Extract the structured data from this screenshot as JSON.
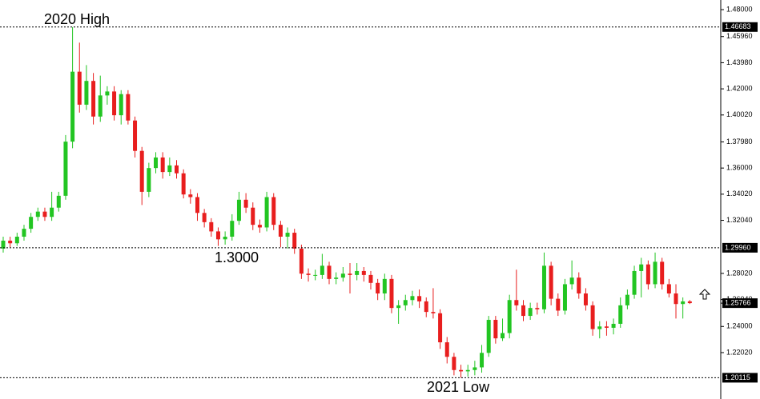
{
  "chart_data": {
    "type": "candlestick",
    "ylim": [
      1.1905,
      1.4873
    ],
    "yticks": [
      {
        "value": 1.48,
        "label": "1.48000"
      },
      {
        "value": 1.4596,
        "label": "1.45960"
      },
      {
        "value": 1.4398,
        "label": "1.43980"
      },
      {
        "value": 1.42,
        "label": "1.42000"
      },
      {
        "value": 1.4002,
        "label": "1.40020"
      },
      {
        "value": 1.3798,
        "label": "1.37980"
      },
      {
        "value": 1.36,
        "label": "1.36000"
      },
      {
        "value": 1.3402,
        "label": "1.34020"
      },
      {
        "value": 1.3204,
        "label": "1.32040"
      },
      {
        "value": 1.2802,
        "label": "1.28020"
      },
      {
        "value": 1.2604,
        "label": "1.26040"
      },
      {
        "value": 1.24,
        "label": "1.24000"
      },
      {
        "value": 1.2202,
        "label": "1.22020"
      }
    ],
    "levels": [
      1.46683,
      {
        "value": 1.2996,
        "label": "1.29960"
      },
      {
        "value": 1.20115,
        "label": "1.20115"
      }
    ],
    "last_price": 1.25766,
    "annotations": [
      "2020 High",
      "1.3000",
      "2021 Low"
    ],
    "up_color": "#22c522",
    "down_color": "#e81e1e",
    "open": [
      1.299,
      1.305,
      1.303,
      1.308,
      1.314,
      1.323,
      1.327,
      1.323,
      1.33,
      1.339,
      1.38,
      1.433,
      1.408,
      1.426,
      1.399,
      1.415,
      1.418,
      1.4,
      1.416,
      1.396,
      1.373,
      1.342,
      1.36,
      1.368,
      1.357,
      1.362,
      1.356,
      1.34,
      1.338,
      1.326,
      1.319,
      1.312,
      1.306,
      1.308,
      1.32,
      1.336,
      1.33,
      1.317,
      1.315,
      1.338,
      1.317,
      1.308,
      1.311,
      1.299,
      1.28,
      1.279,
      1.279,
      1.286,
      1.276,
      1.277,
      1.28,
      1.279,
      1.282,
      1.279,
      1.273,
      1.265,
      1.276,
      1.254,
      1.256,
      1.26,
      1.263,
      1.259,
      1.251,
      1.25,
      1.228,
      1.217,
      1.207,
      1.206,
      1.207,
      1.209,
      1.22,
      1.245,
      1.231,
      1.235,
      1.26,
      1.256,
      1.248,
      1.254,
      1.253,
      1.286,
      1.261,
      1.252,
      1.272,
      1.277,
      1.265,
      1.256,
      1.238,
      1.24,
      1.239,
      1.242,
      1.256,
      1.264,
      1.282,
      1.287,
      1.272,
      1.289,
      1.272,
      1.265,
      1.257,
      1.259
    ],
    "high": [
      1.308,
      1.308,
      1.311,
      1.317,
      1.326,
      1.33,
      1.33,
      1.342,
      1.342,
      1.385,
      1.4668,
      1.455,
      1.438,
      1.432,
      1.43,
      1.422,
      1.422,
      1.419,
      1.419,
      1.399,
      1.376,
      1.364,
      1.372,
      1.372,
      1.368,
      1.366,
      1.359,
      1.344,
      1.341,
      1.329,
      1.322,
      1.315,
      1.312,
      1.325,
      1.342,
      1.341,
      1.334,
      1.321,
      1.342,
      1.341,
      1.32,
      1.315,
      1.314,
      1.302,
      1.284,
      1.283,
      1.295,
      1.289,
      1.281,
      1.285,
      1.288,
      1.288,
      1.285,
      1.282,
      1.276,
      1.28,
      1.279,
      1.26,
      1.264,
      1.267,
      1.268,
      1.262,
      1.269,
      1.253,
      1.232,
      1.22,
      1.211,
      1.211,
      1.214,
      1.226,
      1.248,
      1.248,
      1.246,
      1.264,
      1.283,
      1.26,
      1.258,
      1.258,
      1.296,
      1.289,
      1.265,
      1.276,
      1.29,
      1.281,
      1.269,
      1.259,
      1.244,
      1.244,
      1.246,
      1.262,
      1.268,
      1.286,
      1.292,
      1.29,
      1.296,
      1.292,
      1.276,
      1.272,
      1.262,
      1.26
    ],
    "low": [
      1.296,
      1.3,
      1.301,
      1.305,
      1.311,
      1.32,
      1.32,
      1.32,
      1.327,
      1.336,
      1.375,
      1.402,
      1.404,
      1.393,
      1.395,
      1.408,
      1.396,
      1.393,
      1.393,
      1.368,
      1.332,
      1.338,
      1.356,
      1.352,
      1.354,
      1.352,
      1.337,
      1.333,
      1.32,
      1.315,
      1.308,
      1.301,
      1.302,
      1.305,
      1.317,
      1.326,
      1.313,
      1.311,
      1.312,
      1.313,
      1.3,
      1.299,
      1.295,
      1.276,
      1.274,
      1.275,
      1.276,
      1.272,
      1.272,
      1.274,
      1.265,
      1.275,
      1.274,
      1.268,
      1.26,
      1.26,
      1.25,
      1.242,
      1.252,
      1.256,
      1.254,
      1.247,
      1.246,
      1.223,
      1.212,
      1.203,
      1.2012,
      1.202,
      1.203,
      1.205,
      1.217,
      1.227,
      1.229,
      1.231,
      1.252,
      1.244,
      1.245,
      1.249,
      1.25,
      1.256,
      1.248,
      1.249,
      1.268,
      1.261,
      1.252,
      1.233,
      1.231,
      1.233,
      1.234,
      1.239,
      1.253,
      1.261,
      1.262,
      1.268,
      1.269,
      1.268,
      1.262,
      1.246,
      1.246,
      1.257
    ],
    "close": [
      1.305,
      1.303,
      1.308,
      1.314,
      1.323,
      1.327,
      1.323,
      1.33,
      1.339,
      1.38,
      1.433,
      1.408,
      1.426,
      1.399,
      1.415,
      1.418,
      1.4,
      1.416,
      1.396,
      1.373,
      1.342,
      1.36,
      1.368,
      1.357,
      1.362,
      1.356,
      1.34,
      1.338,
      1.326,
      1.319,
      1.312,
      1.306,
      1.308,
      1.32,
      1.336,
      1.33,
      1.317,
      1.315,
      1.338,
      1.317,
      1.308,
      1.311,
      1.299,
      1.28,
      1.279,
      1.279,
      1.286,
      1.276,
      1.277,
      1.28,
      1.279,
      1.282,
      1.279,
      1.273,
      1.265,
      1.276,
      1.254,
      1.256,
      1.26,
      1.263,
      1.259,
      1.251,
      1.25,
      1.228,
      1.217,
      1.207,
      1.206,
      1.207,
      1.209,
      1.22,
      1.245,
      1.231,
      1.235,
      1.26,
      1.256,
      1.248,
      1.254,
      1.253,
      1.286,
      1.261,
      1.252,
      1.272,
      1.277,
      1.265,
      1.256,
      1.238,
      1.24,
      1.239,
      1.242,
      1.256,
      1.264,
      1.282,
      1.287,
      1.272,
      1.289,
      1.272,
      1.265,
      1.257,
      1.259,
      1.2577
    ]
  }
}
